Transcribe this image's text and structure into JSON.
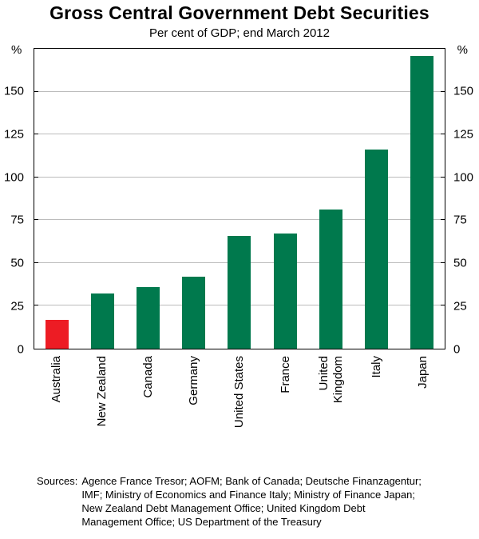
{
  "title": "Gross Central Government Debt Securities",
  "subtitle": "Per cent of GDP; end March 2012",
  "axis_unit_left": "%",
  "axis_unit_right": "%",
  "footer": {
    "sources_label": "Sources:",
    "sources_text": "Agence France Tresor; AOFM; Bank of Canada; Deutsche Finanzagentur; IMF; Ministry of Economics and Finance Italy; Ministry of Finance Japan; New Zealand Debt Management Office; United Kingdom  Debt Management Office; US Department of the Treasury"
  },
  "chart_data": {
    "type": "bar",
    "title": "Gross Central Government Debt Securities",
    "subtitle": "Per cent of GDP; end March 2012",
    "categories": [
      "Australia",
      "New Zealand",
      "Canada",
      "Germany",
      "United States",
      "France",
      "United\nKingdom",
      "Italy",
      "Japan"
    ],
    "values": [
      17,
      32,
      36,
      42,
      66,
      67,
      81,
      116,
      171
    ],
    "bar_color": "#00794d",
    "highlight_color": "#ed1c24",
    "highlight_index": 0,
    "ylim": [
      0,
      175
    ],
    "yticks": [
      0,
      25,
      50,
      75,
      100,
      125,
      150
    ],
    "ylabel": "%",
    "grid": true,
    "legend": "none"
  }
}
